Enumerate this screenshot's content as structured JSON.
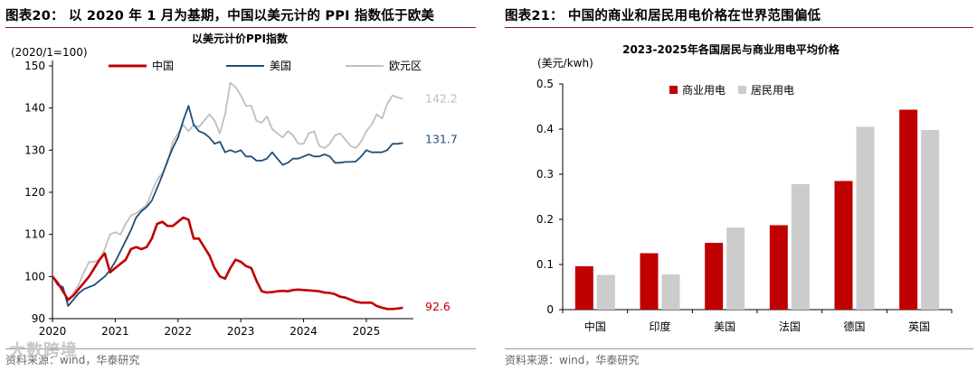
{
  "left_panel": {
    "figure_title": "图表20： 以 2020 年 1 月为基期，中国以美元计的 PPI 指数低于欧美",
    "source": "资料来源：wind，华泰研究",
    "watermark": "大数跨境"
  },
  "right_panel": {
    "figure_title": "图表21：  中国的商业和居民用电价格在世界范围偏低",
    "source": "资料来源：wind，华泰研究"
  },
  "chart_data": [
    {
      "type": "line",
      "title": "以美元计价PPI指数",
      "ylabel": "(2020/1=100)",
      "ylim": [
        90,
        150
      ],
      "yticks": [
        90,
        100,
        110,
        120,
        130,
        140,
        150
      ],
      "xlim": [
        2020,
        2025.75
      ],
      "xticks": [
        2020,
        2021,
        2022,
        2023,
        2024,
        2025
      ],
      "x": [
        2020.0,
        2020.083,
        2020.167,
        2020.25,
        2020.333,
        2020.417,
        2020.5,
        2020.583,
        2020.667,
        2020.75,
        2020.833,
        2020.917,
        2021.0,
        2021.083,
        2021.167,
        2021.25,
        2021.333,
        2021.417,
        2021.5,
        2021.583,
        2021.667,
        2021.75,
        2021.833,
        2021.917,
        2022.0,
        2022.083,
        2022.167,
        2022.25,
        2022.333,
        2022.417,
        2022.5,
        2022.583,
        2022.667,
        2022.75,
        2022.833,
        2022.917,
        2023.0,
        2023.083,
        2023.167,
        2023.25,
        2023.333,
        2023.417,
        2023.5,
        2023.583,
        2023.667,
        2023.75,
        2023.833,
        2023.917,
        2024.0,
        2024.083,
        2024.167,
        2024.25,
        2024.333,
        2024.417,
        2024.5,
        2024.583,
        2024.667,
        2024.75,
        2024.833,
        2024.917,
        2025.0,
        2025.083,
        2025.167,
        2025.25,
        2025.333,
        2025.417,
        2025.5,
        2025.583
      ],
      "series": [
        {
          "name": "中国",
          "color": "#c00000",
          "end_label": "92.6",
          "values": [
            100,
            98.5,
            96.5,
            94.5,
            95.5,
            97,
            98.5,
            100,
            102,
            104,
            105.5,
            101,
            102,
            103,
            104,
            106.5,
            107,
            106.5,
            107,
            109,
            112.5,
            113,
            112,
            112,
            113,
            114,
            113.5,
            109,
            109,
            107,
            105,
            102,
            100,
            99.5,
            102,
            104,
            103.5,
            102.5,
            102,
            99,
            96.5,
            96.2,
            96.3,
            96.5,
            96.6,
            96.5,
            96.8,
            96.9,
            96.8,
            96.7,
            96.6,
            96.5,
            96.2,
            96.1,
            95.8,
            95.2,
            95,
            94.5,
            94,
            93.8,
            93.8,
            93.8,
            93,
            92.6,
            92.3,
            92.3,
            92.4,
            92.6
          ]
        },
        {
          "name": "美国",
          "color": "#1f4e79",
          "end_label": "131.7",
          "values": [
            100,
            98,
            97.5,
            93,
            94.5,
            96,
            97,
            97.5,
            98,
            99,
            100,
            101.5,
            103.5,
            106,
            108.5,
            111,
            114,
            115.5,
            116.5,
            118,
            121,
            124,
            127.5,
            130.5,
            133,
            137,
            140.5,
            136,
            134.5,
            134,
            133,
            131.5,
            132,
            129.5,
            130,
            129.5,
            130,
            128.5,
            128.5,
            127.5,
            127.5,
            128,
            129.5,
            128,
            126.5,
            127,
            128,
            128,
            128.5,
            129,
            128.5,
            128.5,
            129,
            128.5,
            127,
            127,
            127.2,
            127.2,
            127.3,
            128.5,
            130,
            129.5,
            129.5,
            129.5,
            130,
            131.5,
            131.5,
            131.7
          ]
        },
        {
          "name": "欧元区",
          "color": "#bfbfbf",
          "end_label": "142.2",
          "values": [
            100,
            98.5,
            97,
            94,
            96,
            98,
            101,
            103.5,
            103.5,
            104,
            106.5,
            110,
            110.5,
            110,
            112.5,
            114.5,
            115,
            116,
            117,
            120,
            123,
            124.5,
            127,
            132,
            134,
            136,
            134.5,
            136,
            135.5,
            137,
            138.5,
            137,
            134,
            138.5,
            146,
            145,
            143,
            140.5,
            140.5,
            137,
            136.5,
            138,
            135,
            134,
            133,
            134.5,
            133.5,
            131.5,
            131.5,
            134,
            134.5,
            131,
            130.5,
            131.5,
            133.5,
            134,
            132.5,
            131,
            130.5,
            132,
            134.5,
            136,
            138.5,
            137.5,
            141,
            143,
            142.5,
            142.2
          ]
        }
      ]
    },
    {
      "type": "bar",
      "title": "2023-2025年各国居民与商业用电平均价格",
      "ylabel": "(美元/kwh)",
      "ylim": [
        0,
        0.5
      ],
      "yticks": [
        "0",
        "0.1",
        "0.2",
        "0.3",
        "0.4",
        "0.5"
      ],
      "categories": [
        "中国",
        "印度",
        "美国",
        "法国",
        "德国",
        "英国"
      ],
      "series": [
        {
          "name": "商业用电",
          "color": "#c00000",
          "values": [
            0.096,
            0.125,
            0.148,
            0.187,
            0.285,
            0.443
          ]
        },
        {
          "name": "居民用电",
          "color": "#cccccc",
          "values": [
            0.077,
            0.078,
            0.182,
            0.278,
            0.405,
            0.398
          ]
        }
      ]
    }
  ]
}
